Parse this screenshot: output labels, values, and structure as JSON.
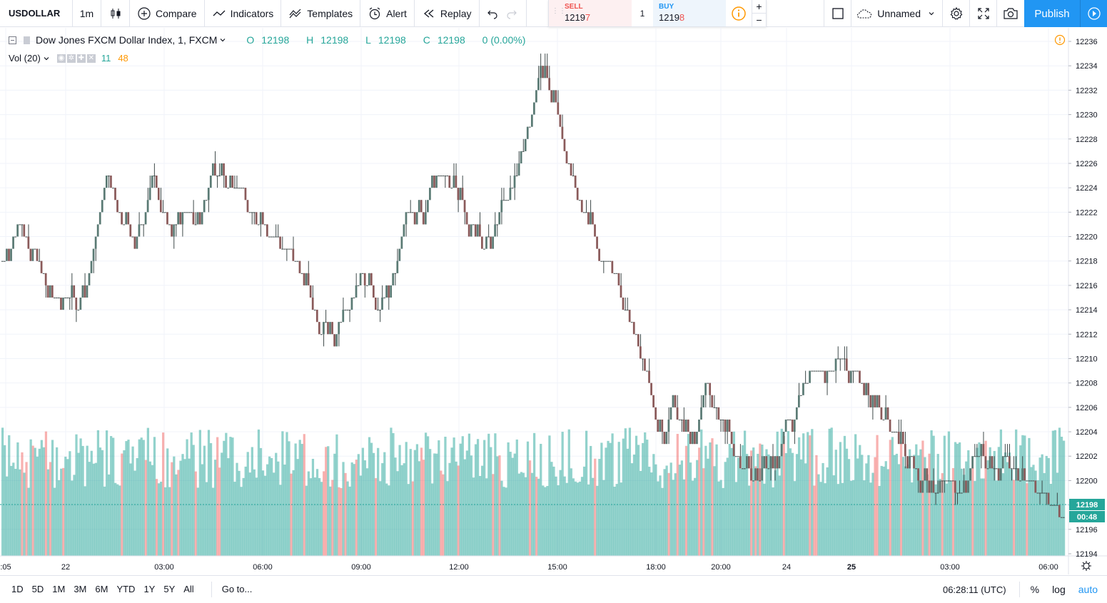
{
  "toolbar": {
    "symbol": "USDOLLAR",
    "interval": "1m",
    "compare": "Compare",
    "indicators": "Indicators",
    "templates": "Templates",
    "alert": "Alert",
    "replay": "Replay",
    "layout_name": "Unnamed",
    "publish": "Publish"
  },
  "trade": {
    "sell_label": "SELL",
    "sell_price_main": "1219",
    "sell_price_last": "7",
    "quantity": "1",
    "buy_label": "BUY",
    "buy_price_main": "1219",
    "buy_price_last": "8",
    "plus": "+",
    "minus": "−"
  },
  "legend": {
    "title": "Dow Jones FXCM Dollar Index, 1, FXCM",
    "o_label": "O",
    "o_value": "12198",
    "h_label": "H",
    "h_value": "12198",
    "l_label": "L",
    "l_value": "12198",
    "c_label": "C",
    "c_value": "12198",
    "change": "0 (0.00%)",
    "vol_label": "Vol (20)",
    "vol_value_1": "11",
    "vol_value_2": "48"
  },
  "price_axis": {
    "ticks": [
      "12236",
      "12234",
      "12232",
      "12230",
      "12228",
      "12226",
      "12224",
      "12222",
      "12220",
      "12218",
      "12216",
      "12214",
      "12212",
      "12210",
      "12208",
      "12206",
      "12204",
      "12202",
      "12200",
      "12198",
      "12196",
      "12194"
    ],
    "current_price": "12198",
    "countdown": "00:48"
  },
  "time_axis": {
    "ticks": [
      ":05",
      "22",
      "03:00",
      "06:00",
      "09:00",
      "12:00",
      "15:00",
      "18:00",
      "20:00",
      "24",
      "25",
      "03:00",
      "06:00"
    ]
  },
  "bottom": {
    "ranges": [
      "1D",
      "5D",
      "1M",
      "3M",
      "6M",
      "YTD",
      "1Y",
      "5Y",
      "All"
    ],
    "goto": "Go to...",
    "time": "06:28:11 (UTC)",
    "percent": "%",
    "log": "log",
    "auto": "auto"
  },
  "colors": {
    "up": "#26a69a",
    "down": "#ef5350",
    "accent": "#2196f3",
    "grid": "#f0f3fa"
  },
  "chart_data": {
    "type": "candlestick",
    "ylim": [
      12194,
      12237
    ],
    "path": [
      [
        0,
        12218
      ],
      [
        2,
        12221
      ],
      [
        4,
        12219
      ],
      [
        6,
        12216
      ],
      [
        8,
        12215
      ],
      [
        10,
        12214
      ],
      [
        12,
        12219
      ],
      [
        14,
        12225
      ],
      [
        16,
        12221
      ],
      [
        18,
        12219
      ],
      [
        20,
        12225
      ],
      [
        22,
        12221
      ],
      [
        24,
        12222
      ],
      [
        26,
        12221
      ],
      [
        28,
        12225
      ],
      [
        30,
        12224
      ],
      [
        32,
        12224
      ],
      [
        34,
        12221
      ],
      [
        36,
        12220
      ],
      [
        38,
        12219
      ],
      [
        40,
        12217
      ],
      [
        42,
        12213
      ],
      [
        44,
        12212
      ],
      [
        46,
        12214
      ],
      [
        48,
        12217
      ],
      [
        50,
        12214
      ],
      [
        52,
        12216
      ],
      [
        54,
        12222
      ],
      [
        56,
        12222
      ],
      [
        58,
        12226
      ],
      [
        60,
        12224
      ],
      [
        62,
        12222
      ],
      [
        64,
        12219
      ],
      [
        66,
        12221
      ],
      [
        68,
        12224
      ],
      [
        70,
        12228
      ],
      [
        72,
        12234
      ],
      [
        74,
        12230
      ],
      [
        76,
        12225
      ],
      [
        78,
        12222
      ],
      [
        80,
        12218
      ],
      [
        82,
        12217
      ],
      [
        84,
        12213
      ],
      [
        86,
        12209
      ],
      [
        88,
        12204
      ],
      [
        90,
        12206
      ],
      [
        92,
        12203
      ],
      [
        94,
        12208
      ],
      [
        96,
        12205
      ],
      [
        98,
        12202
      ],
      [
        100,
        12200
      ],
      [
        102,
        12201
      ],
      [
        104,
        12203
      ],
      [
        106,
        12206
      ],
      [
        108,
        12209
      ],
      [
        110,
        12209
      ],
      [
        112,
        12210
      ],
      [
        114,
        12209
      ],
      [
        116,
        12206
      ],
      [
        118,
        12205
      ],
      [
        120,
        12203
      ],
      [
        122,
        12201
      ],
      [
        124,
        12199
      ],
      [
        126,
        12200
      ],
      [
        128,
        12199
      ],
      [
        130,
        12202
      ],
      [
        132,
        12201
      ],
      [
        134,
        12202
      ],
      [
        136,
        12200
      ],
      [
        138,
        12200
      ],
      [
        140,
        12198
      ],
      [
        142,
        12197
      ]
    ]
  }
}
